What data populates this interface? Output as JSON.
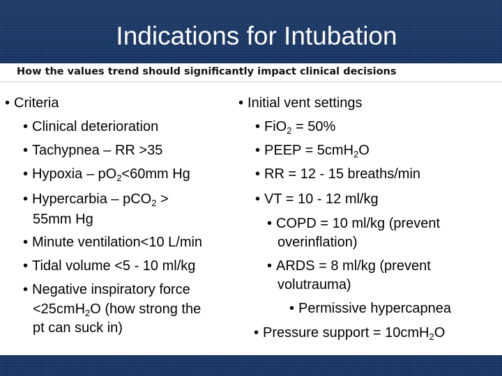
{
  "slide": {
    "title": "Indications for Intubation",
    "subtitle": "How the values trend should significantly impact clinical decisions"
  },
  "left_column": {
    "heading": "Criteria",
    "items": {
      "clinical_deterioration": "Clinical deterioration",
      "tachypnea": "Tachypnea – RR >35",
      "hypoxia": {
        "prefix": "Hypoxia – pO",
        "sub": "2",
        "suffix": "<60mm Hg"
      },
      "hypercarbia": {
        "prefix": "Hypercarbia – pCO",
        "sub": "2",
        "suffix": " >",
        "line2": "55mm Hg"
      },
      "minute_ventilation": "Minute ventilation<10 L/min",
      "tidal_volume": "Tidal volume <5 - 10 ml/kg",
      "negative_inspiratory_force": {
        "line1": "Negative inspiratory force",
        "line2_prefix": "<25cmH",
        "line2_sub": "2",
        "line2_suffix": "O (how strong the",
        "line3": "pt can suck in)"
      }
    }
  },
  "right_column": {
    "heading": "Initial vent settings",
    "items": {
      "fio2": {
        "prefix": "FiO",
        "sub": "2",
        "suffix": " = 50%"
      },
      "peep": {
        "prefix": "PEEP = 5cmH",
        "sub": "2",
        "suffix": "O"
      },
      "rr": "RR = 12 - 15 breaths/min",
      "vt": "VT = 10 - 12 ml/kg",
      "copd": {
        "line1": "COPD = 10 ml/kg (prevent",
        "line2": "overinflation)"
      },
      "ards": {
        "line1": "ARDS = 8 ml/kg (prevent",
        "line2": "volutrauma)"
      },
      "permissive": "Permissive hypercapnea",
      "pressure_support": {
        "prefix": "Pressure support = 10cmH",
        "sub": "2",
        "suffix": "O"
      }
    }
  },
  "bullet_char": "•",
  "colors": {
    "title_bar": "#173461",
    "title_text": "#ffffff",
    "body_text": "#000000"
  }
}
